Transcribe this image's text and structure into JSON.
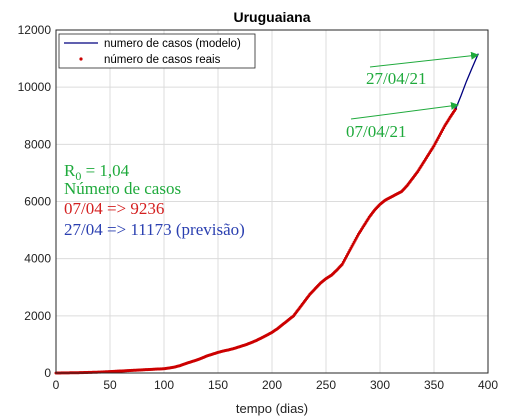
{
  "chart_data": {
    "type": "line",
    "title": "Uruguaiana",
    "xlabel": "tempo (dias)",
    "ylabel": "",
    "xlim": [
      0,
      400
    ],
    "ylim": [
      0,
      12000
    ],
    "xticks": [
      0,
      50,
      100,
      150,
      200,
      250,
      300,
      350,
      400
    ],
    "yticks": [
      0,
      2000,
      4000,
      6000,
      8000,
      10000,
      12000
    ],
    "grid": true,
    "legend_position": "top-right",
    "series": [
      {
        "name": "numero de casos (modelo)",
        "color": "#00007f",
        "style": "line",
        "x": [
          370,
          375,
          380,
          385,
          391
        ],
        "y": [
          9236,
          9700,
          10200,
          10650,
          11173
        ]
      },
      {
        "name": "número de casos reais",
        "color": "#cc0000",
        "style": "points",
        "x": [
          0,
          10,
          20,
          30,
          40,
          50,
          60,
          70,
          80,
          90,
          100,
          105,
          110,
          115,
          120,
          125,
          130,
          135,
          140,
          145,
          150,
          155,
          160,
          165,
          170,
          175,
          180,
          185,
          190,
          195,
          200,
          205,
          210,
          215,
          220,
          225,
          230,
          235,
          240,
          245,
          250,
          255,
          260,
          265,
          270,
          275,
          280,
          285,
          290,
          295,
          300,
          305,
          310,
          315,
          320,
          325,
          330,
          335,
          340,
          345,
          350,
          355,
          360,
          365,
          370
        ],
        "y": [
          0,
          5,
          10,
          20,
          30,
          50,
          70,
          90,
          110,
          130,
          150,
          175,
          210,
          260,
          330,
          390,
          450,
          520,
          600,
          660,
          720,
          770,
          810,
          860,
          920,
          980,
          1050,
          1130,
          1220,
          1320,
          1420,
          1550,
          1700,
          1850,
          2000,
          2250,
          2500,
          2750,
          2950,
          3150,
          3300,
          3420,
          3600,
          3800,
          4150,
          4500,
          4850,
          5150,
          5450,
          5700,
          5900,
          6050,
          6150,
          6250,
          6350,
          6550,
          6800,
          7050,
          7350,
          7650,
          7950,
          8300,
          8650,
          8950,
          9236
        ]
      }
    ],
    "annotations": {
      "r0_label": "R",
      "r0_sub": "0",
      "r0_value": " = 1,04",
      "cases_heading": "Número de casos",
      "line1": "07/04 => 9236",
      "line2": "27/04 => 11173 (previsão)",
      "arrow_label_1": "27/04/21",
      "arrow_label_2": "07/04/21"
    },
    "colors": {
      "green": "#1faa3c",
      "red": "#d42020",
      "blue": "#2a3fb0"
    }
  }
}
